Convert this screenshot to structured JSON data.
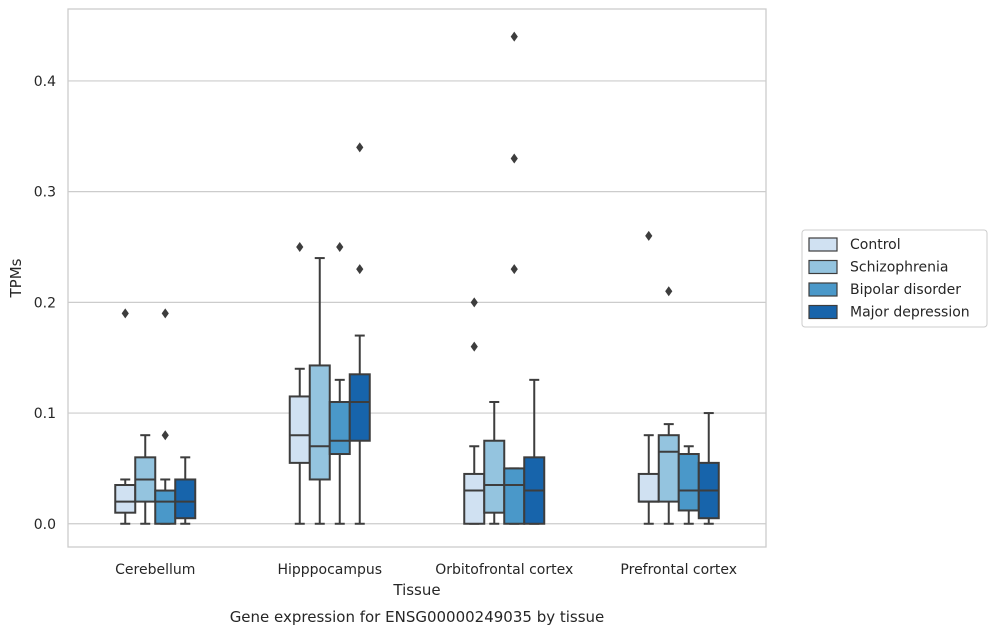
{
  "caption": "Gene expression for ENSG00000249035 by tissue",
  "chart_data": {
    "type": "box",
    "xlabel": "Tissue",
    "ylabel": "TPMs",
    "ylim": [
      -0.021,
      0.465
    ],
    "yticks": [
      0.0,
      0.1,
      0.2,
      0.3,
      0.4
    ],
    "ytick_labels": [
      "0.0",
      "0.1",
      "0.2",
      "0.3",
      "0.4"
    ],
    "grid": "horizontal",
    "legend_position": "right-outside",
    "categories": [
      "Cerebellum",
      "Hipppocampus",
      "Orbitofrontal cortex",
      "Prefrontal cortex"
    ],
    "series": [
      {
        "name": "Control",
        "color": "#d0e1f2",
        "boxes": [
          {
            "whisker_low": 0.0,
            "q1": 0.01,
            "median": 0.02,
            "q3": 0.035,
            "whisker_high": 0.04,
            "outliers": [
              0.19
            ]
          },
          {
            "whisker_low": 0.0,
            "q1": 0.055,
            "median": 0.08,
            "q3": 0.115,
            "whisker_high": 0.14,
            "outliers": [
              0.25
            ]
          },
          {
            "whisker_low": 0.0,
            "q1": 0.0,
            "median": 0.03,
            "q3": 0.045,
            "whisker_high": 0.07,
            "outliers": [
              0.2,
              0.16
            ]
          },
          {
            "whisker_low": 0.0,
            "q1": 0.02,
            "median": 0.02,
            "q3": 0.045,
            "whisker_high": 0.08,
            "outliers": [
              0.26
            ]
          }
        ]
      },
      {
        "name": "Schizophrenia",
        "color": "#94c4df",
        "boxes": [
          {
            "whisker_low": 0.0,
            "q1": 0.02,
            "median": 0.04,
            "q3": 0.06,
            "whisker_high": 0.08,
            "outliers": []
          },
          {
            "whisker_low": 0.0,
            "q1": 0.04,
            "median": 0.07,
            "q3": 0.143,
            "whisker_high": 0.24,
            "outliers": []
          },
          {
            "whisker_low": 0.0,
            "q1": 0.01,
            "median": 0.035,
            "q3": 0.075,
            "whisker_high": 0.11,
            "outliers": []
          },
          {
            "whisker_low": 0.0,
            "q1": 0.02,
            "median": 0.065,
            "q3": 0.08,
            "whisker_high": 0.09,
            "outliers": [
              0.21
            ]
          }
        ]
      },
      {
        "name": "Bipolar disorder",
        "color": "#4a98c9",
        "boxes": [
          {
            "whisker_low": 0.0,
            "q1": 0.0,
            "median": 0.02,
            "q3": 0.03,
            "whisker_high": 0.04,
            "outliers": [
              0.19,
              0.08
            ]
          },
          {
            "whisker_low": 0.0,
            "q1": 0.063,
            "median": 0.075,
            "q3": 0.11,
            "whisker_high": 0.13,
            "outliers": [
              0.25
            ]
          },
          {
            "whisker_low": 0.0,
            "q1": 0.0,
            "median": 0.035,
            "q3": 0.05,
            "whisker_high": 0.05,
            "outliers": [
              0.44,
              0.33,
              0.23
            ]
          },
          {
            "whisker_low": 0.0,
            "q1": 0.012,
            "median": 0.03,
            "q3": 0.063,
            "whisker_high": 0.07,
            "outliers": []
          }
        ]
      },
      {
        "name": "Major depression",
        "color": "#1764ab",
        "boxes": [
          {
            "whisker_low": 0.0,
            "q1": 0.005,
            "median": 0.02,
            "q3": 0.04,
            "whisker_high": 0.06,
            "outliers": []
          },
          {
            "whisker_low": 0.0,
            "q1": 0.075,
            "median": 0.11,
            "q3": 0.135,
            "whisker_high": 0.17,
            "outliers": [
              0.34,
              0.23
            ]
          },
          {
            "whisker_low": 0.0,
            "q1": 0.0,
            "median": 0.03,
            "q3": 0.06,
            "whisker_high": 0.13,
            "outliers": []
          },
          {
            "whisker_low": 0.0,
            "q1": 0.005,
            "median": 0.03,
            "q3": 0.055,
            "whisker_high": 0.1,
            "outliers": []
          }
        ]
      }
    ]
  }
}
